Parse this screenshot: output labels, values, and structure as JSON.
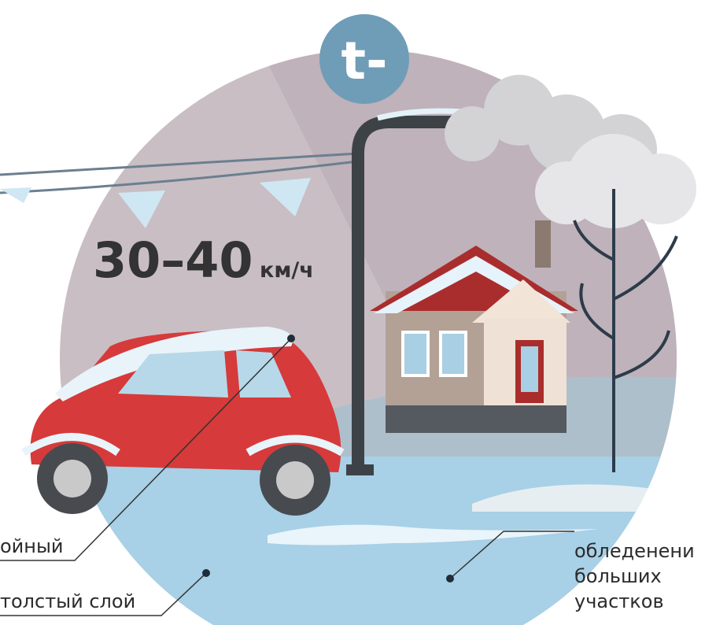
{
  "badge": "t-",
  "speed": {
    "value": "30–40",
    "unit": "км/ч"
  },
  "labels": {
    "left_top": "ойный",
    "left_bottom": "толстый слой",
    "right": [
      "обледенени",
      "больших",
      "участков"
    ]
  }
}
